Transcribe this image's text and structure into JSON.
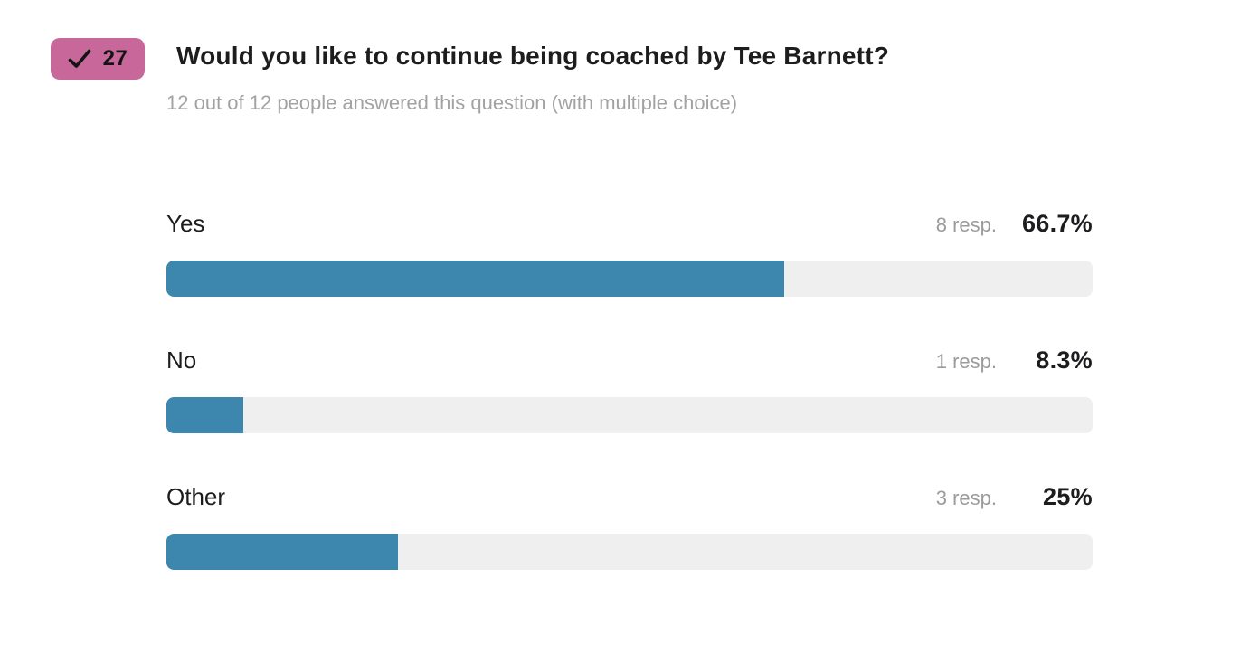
{
  "badge": {
    "number": "27",
    "icon": "checkmark"
  },
  "question": {
    "title": "Would you like to continue being coached by Tee Barnett?",
    "subtitle": "12 out of 12 people answered this question (with multiple choice)"
  },
  "results": [
    {
      "label": "Yes",
      "responses_label": "8 resp.",
      "percent_label": "66.7%",
      "percent": 66.7
    },
    {
      "label": "No",
      "responses_label": "1 resp.",
      "percent_label": "8.3%",
      "percent": 8.3
    },
    {
      "label": "Other",
      "responses_label": "3 resp.",
      "percent_label": "25%",
      "percent": 25
    }
  ],
  "chart_data": {
    "type": "bar",
    "orientation": "horizontal",
    "title": "Would you like to continue being coached by Tee Barnett?",
    "subtitle": "12 out of 12 people answered this question (with multiple choice)",
    "categories": [
      "Yes",
      "No",
      "Other"
    ],
    "series": [
      {
        "name": "percent_of_respondents",
        "values": [
          66.7,
          8.3,
          25
        ]
      },
      {
        "name": "respondent_count",
        "values": [
          8,
          1,
          3
        ]
      }
    ],
    "total_respondents": 12,
    "xlim": [
      0,
      100
    ],
    "grid": false,
    "legend": false
  },
  "colors": {
    "badge_bg": "#c7679a",
    "bar_fill": "#3d87ae",
    "bar_track": "#efefef",
    "title_text": "#1d1d1f",
    "muted_text": "#9b9b9b"
  }
}
